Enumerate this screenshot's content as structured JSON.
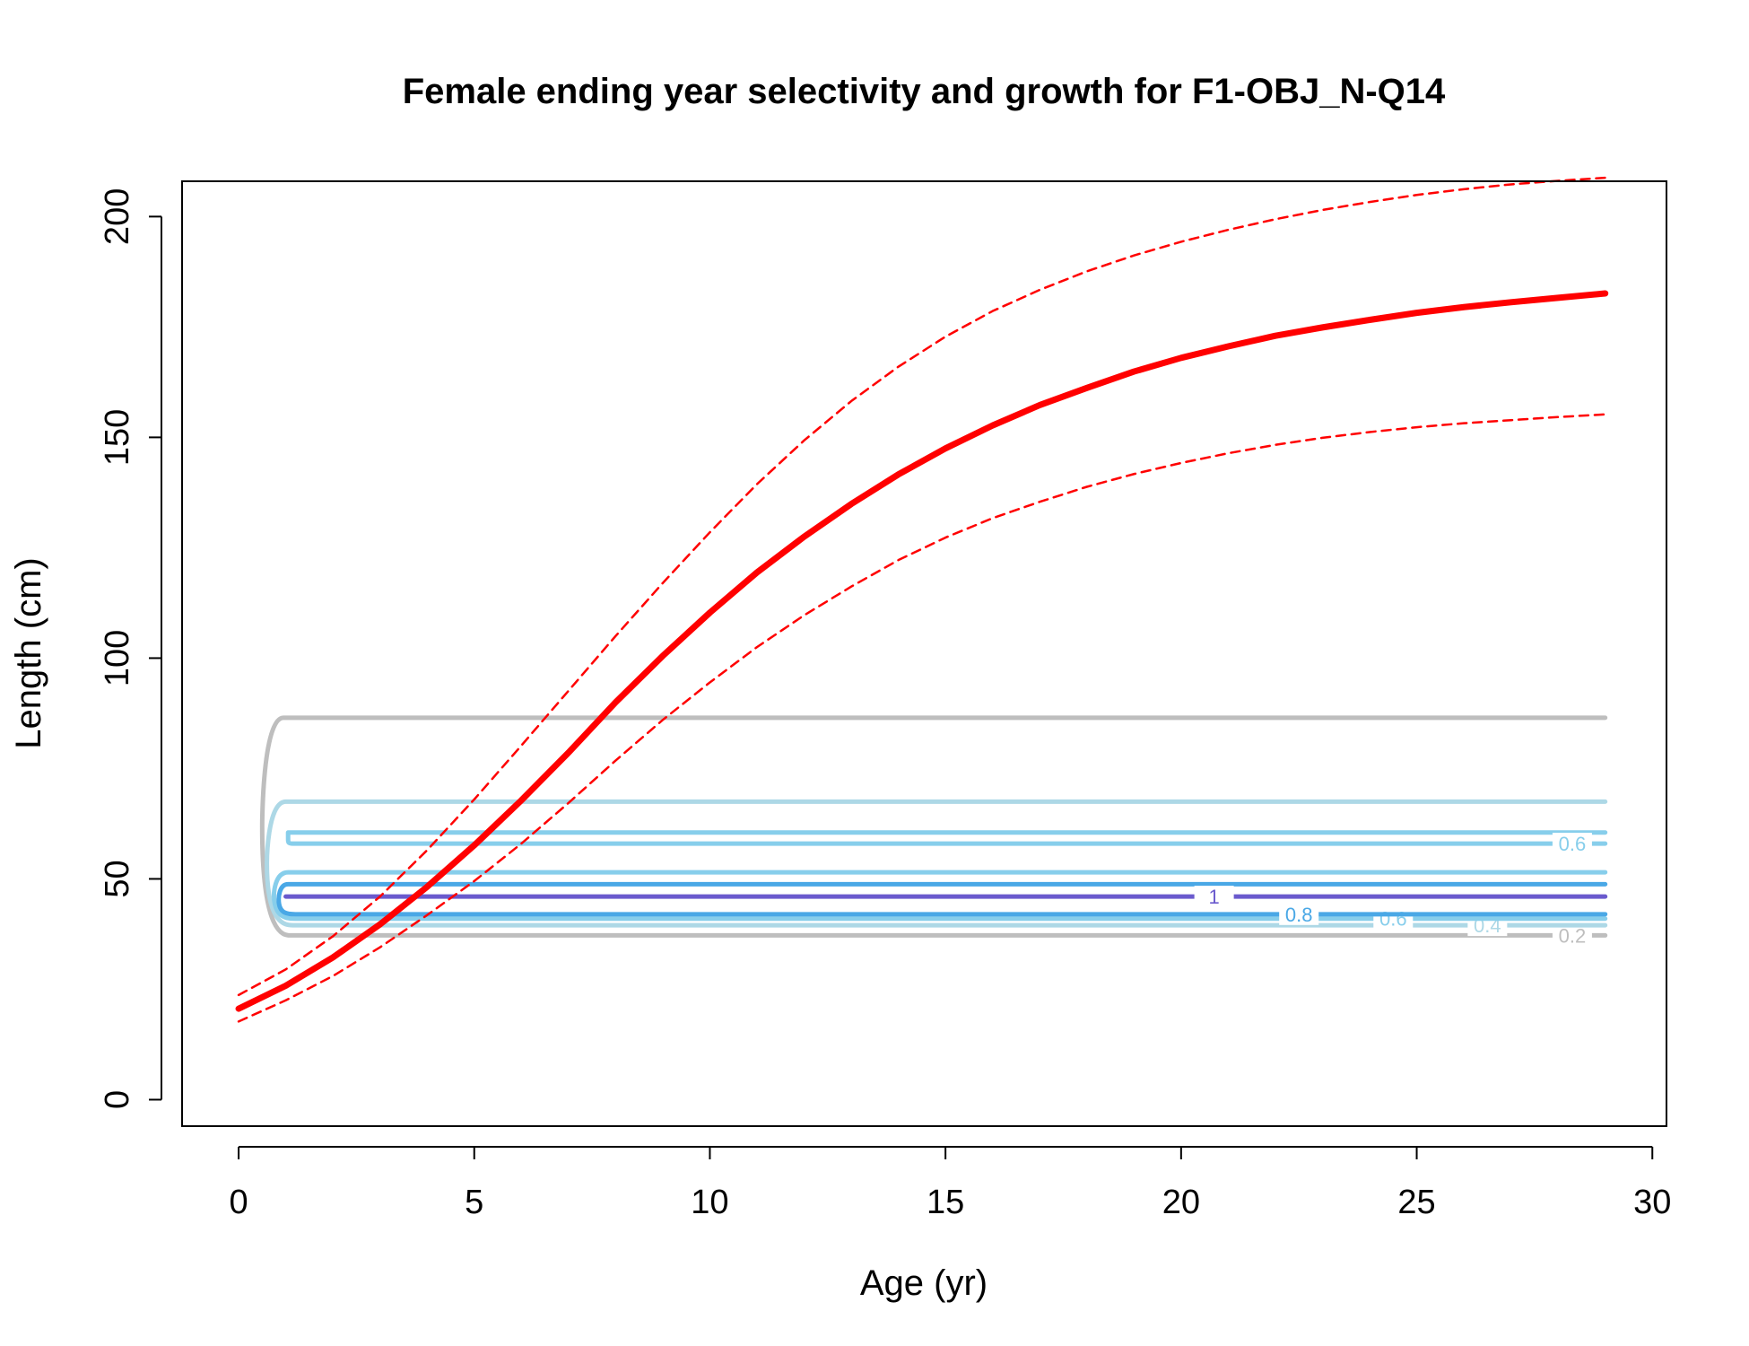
{
  "chart_data": {
    "type": "line",
    "title": "Female ending year selectivity and growth for F1-OBJ_N-Q14",
    "xlabel": "Age (yr)",
    "ylabel": "Length (cm)",
    "xlim": [
      -1.2,
      30.3
    ],
    "ylim": [
      -6,
      208
    ],
    "xticks": [
      0,
      5,
      10,
      15,
      20,
      25,
      30
    ],
    "xtick_labels": [
      "0",
      "5",
      "10",
      "15",
      "20",
      "25",
      "30"
    ],
    "yticks": [
      0,
      50,
      100,
      150,
      200
    ],
    "ytick_labels": [
      "0",
      "50",
      "100",
      "150",
      "200"
    ],
    "grid": false,
    "series": [
      {
        "role": "mean-growth",
        "color": "#ff0000",
        "style": "solid",
        "x": [
          0,
          1,
          2,
          3,
          4,
          5,
          6,
          7,
          8,
          9,
          10,
          11,
          12,
          13,
          14,
          15,
          16,
          17,
          18,
          19,
          20,
          21,
          22,
          23,
          24,
          25,
          26,
          27,
          28,
          29
        ],
        "y": [
          20.6,
          25.8,
          32.2,
          39.7,
          48.2,
          57.6,
          67.8,
          78.6,
          90.0,
          100.5,
          110.3,
          119.4,
          127.5,
          134.9,
          141.6,
          147.5,
          152.7,
          157.3,
          161.2,
          164.9,
          168.0,
          170.6,
          173.0,
          174.9,
          176.6,
          178.2,
          179.5,
          180.6,
          181.6,
          182.6
        ]
      },
      {
        "role": "upper-interval",
        "color": "#ff0000",
        "style": "dashed",
        "x": [
          0,
          1,
          2,
          3,
          4,
          5,
          6,
          7,
          8,
          9,
          10,
          11,
          12,
          13,
          14,
          15,
          16,
          17,
          18,
          19,
          20,
          21,
          22,
          23,
          24,
          25,
          26,
          27,
          28,
          29
        ],
        "y": [
          23.7,
          29.5,
          37.0,
          46.0,
          56.5,
          68.0,
          80.2,
          92.6,
          105.0,
          117.0,
          128.5,
          139.4,
          149.3,
          158.2,
          166.0,
          172.8,
          178.6,
          183.4,
          187.6,
          191.2,
          194.3,
          197.0,
          199.4,
          201.5,
          203.3,
          204.9,
          206.2,
          207.3,
          208.1,
          208.8
        ]
      },
      {
        "role": "lower-interval",
        "color": "#ff0000",
        "style": "dashed",
        "x": [
          0,
          1,
          2,
          3,
          4,
          5,
          6,
          7,
          8,
          9,
          10,
          11,
          12,
          13,
          14,
          15,
          16,
          17,
          18,
          19,
          20,
          21,
          22,
          23,
          24,
          25,
          26,
          27,
          28,
          29
        ],
        "y": [
          17.7,
          22.5,
          28.0,
          34.5,
          41.8,
          49.5,
          58.0,
          67.2,
          76.8,
          86.0,
          94.5,
          102.5,
          109.7,
          116.2,
          122.2,
          127.3,
          131.7,
          135.4,
          138.8,
          141.7,
          144.2,
          146.4,
          148.3,
          149.9,
          151.2,
          152.3,
          153.2,
          153.9,
          154.6,
          155.2
        ]
      }
    ],
    "contours": [
      {
        "level": "0.2",
        "color": "#bebebe",
        "ylow": 37.2,
        "yhigh": 86.5,
        "xleft_low": 0.5,
        "xleft_high": 0.95,
        "label": "0.2",
        "label_x": 28.3,
        "label_y": 37.2
      },
      {
        "level": "0.4",
        "color": "#add8e6",
        "ylow": 39.5,
        "yhigh": 67.5,
        "xleft_low": 0.6,
        "xleft_high": 1.0,
        "label": "0.4",
        "label_x": 26.5,
        "label_y": 39.5
      },
      {
        "level": "0.6",
        "color": "#87ceeb",
        "ylow": 41.0,
        "yhigh": 51.5,
        "xleft_low": 0.75,
        "xleft_high": 1.05,
        "label": "0.6",
        "label_x": 24.5,
        "label_y": 41.0
      },
      {
        "level": "0.6",
        "color": "#87ceeb",
        "ylow": 58.0,
        "yhigh": 60.5,
        "xleft_low": 1.05,
        "xleft_high": 1.05,
        "label": "0.6",
        "label_x": 28.3,
        "label_y": 58.0
      },
      {
        "level": "0.8",
        "color": "#4aa8e6",
        "ylow": 42.0,
        "yhigh": 48.8,
        "xleft_low": 0.85,
        "xleft_high": 1.05,
        "label": "0.8",
        "label_x": 22.5,
        "label_y": 42.0
      },
      {
        "level": "1",
        "color": "#6a5acd",
        "ylow": 46.0,
        "yhigh": 46.0,
        "xleft_low": 1.0,
        "xleft_high": 1.0,
        "label": "1",
        "label_x": 20.7,
        "label_y": 46.0
      }
    ]
  }
}
